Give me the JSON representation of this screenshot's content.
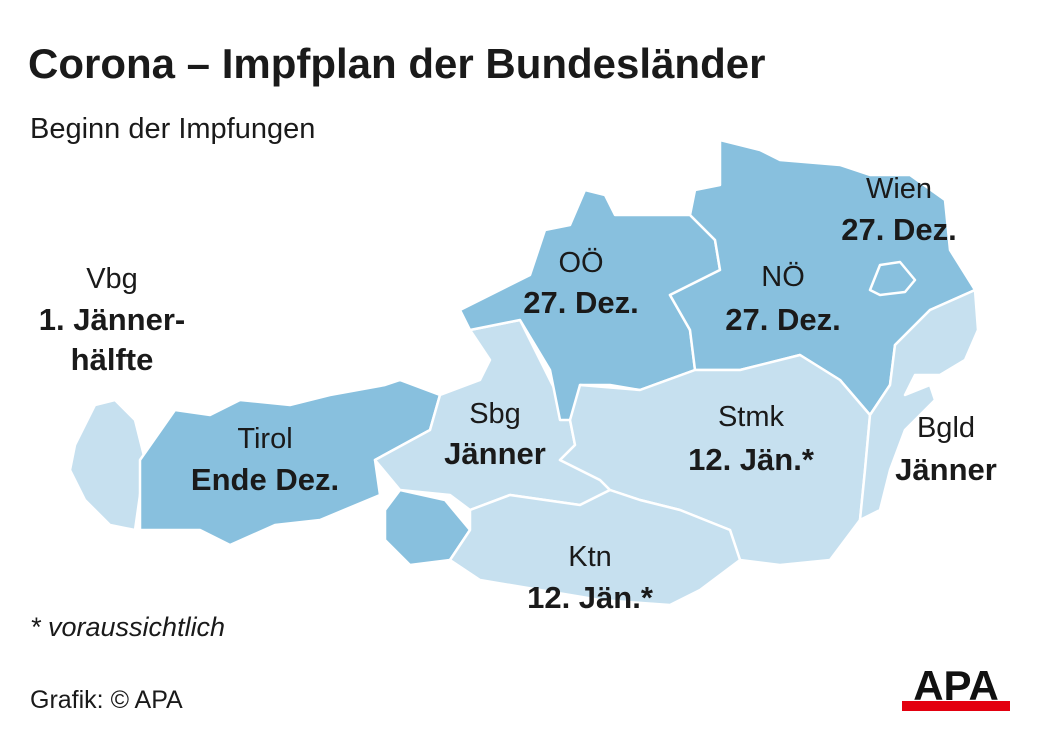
{
  "title": "Corona – Impfplan der Bundesländer",
  "subtitle": "Beginn der Impfungen",
  "regions": [
    {
      "name": "Vbg",
      "date": [
        "1. Jänner-",
        "hälfte"
      ],
      "color": "#c6e0ef"
    },
    {
      "name": "Tirol",
      "date": [
        "Ende Dez."
      ],
      "color": "#88c0de"
    },
    {
      "name": "Sbg",
      "date": [
        "Jänner"
      ],
      "color": "#c6e0ef"
    },
    {
      "name": "OÖ",
      "date": [
        "27. Dez."
      ],
      "color": "#88c0de"
    },
    {
      "name": "NÖ",
      "date": [
        "27. Dez."
      ],
      "color": "#88c0de"
    },
    {
      "name": "Wien",
      "date": [
        "27. Dez."
      ],
      "color": "#88c0de"
    },
    {
      "name": "Stmk",
      "date": [
        "12. Jän.*"
      ],
      "color": "#c6e0ef"
    },
    {
      "name": "Ktn",
      "date": [
        "12. Jän.*"
      ],
      "color": "#c6e0ef"
    },
    {
      "name": "Bgld",
      "date": [
        "Jänner"
      ],
      "color": "#c6e0ef"
    }
  ],
  "footnote": "* voraussichtlich",
  "credit": "Grafik: © APA",
  "logo": "APA"
}
